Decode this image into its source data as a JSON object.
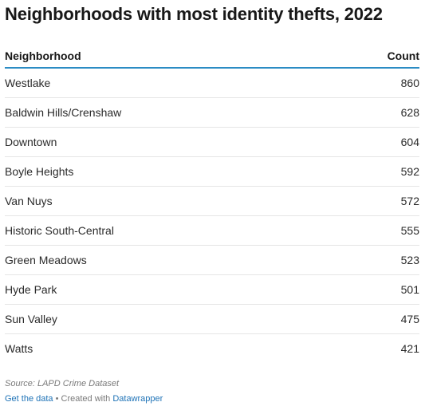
{
  "title": "Neighborhoods with most identity thefts, 2022",
  "columns": [
    "Neighborhood",
    "Count"
  ],
  "rows": [
    {
      "name": "Westlake",
      "value": "860"
    },
    {
      "name": "Baldwin Hills/Crenshaw",
      "value": "628"
    },
    {
      "name": "Downtown",
      "value": "604"
    },
    {
      "name": "Boyle Heights",
      "value": "592"
    },
    {
      "name": "Van Nuys",
      "value": "572"
    },
    {
      "name": "Historic South-Central",
      "value": "555"
    },
    {
      "name": "Green Meadows",
      "value": "523"
    },
    {
      "name": "Hyde Park",
      "value": "501"
    },
    {
      "name": "Sun Valley",
      "value": "475"
    },
    {
      "name": "Watts",
      "value": "421"
    }
  ],
  "footer": {
    "source": "Source: LAPD Crime Dataset",
    "get_data": "Get the data",
    "separator": " • Created with ",
    "tool": "Datawrapper"
  },
  "colors": {
    "header_rule": "#2b8cc4",
    "link": "#1f73b7"
  },
  "chart_data": {
    "type": "table",
    "title": "Neighborhoods with most identity thefts, 2022",
    "columns": [
      "Neighborhood",
      "Count"
    ],
    "categories": [
      "Westlake",
      "Baldwin Hills/Crenshaw",
      "Downtown",
      "Boyle Heights",
      "Van Nuys",
      "Historic South-Central",
      "Green Meadows",
      "Hyde Park",
      "Sun Valley",
      "Watts"
    ],
    "values": [
      860,
      628,
      604,
      592,
      572,
      555,
      523,
      501,
      475,
      421
    ]
  }
}
